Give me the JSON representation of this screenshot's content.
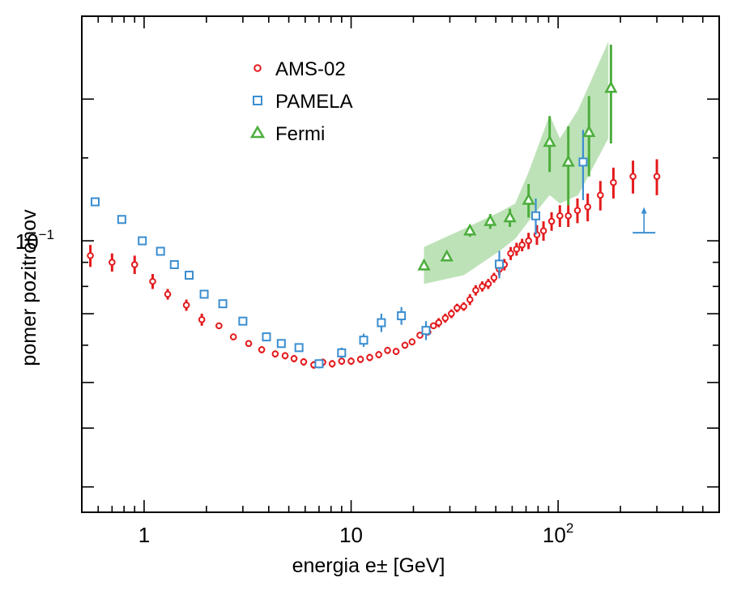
{
  "chart_data": {
    "type": "scatter",
    "xlabel": "energia e± [GeV]",
    "ylabel": "pomer pozitrónov",
    "x_scale": "log",
    "y_scale": "log",
    "xlim": [
      0.5,
      600
    ],
    "ylim": [
      0.0265,
      0.3
    ],
    "x_ticks": [
      {
        "value": 1,
        "label": "1"
      },
      {
        "value": 10,
        "label": "10"
      },
      {
        "value": 100,
        "label": "10",
        "sup": "2"
      }
    ],
    "y_ticks": [
      {
        "value": 0.1,
        "label": "10",
        "sup": "−1"
      }
    ],
    "grid": false,
    "legend_position": "top-left",
    "colors": {
      "ams": "#e31a1c",
      "pamela": "#3b8ed0",
      "fermi": "#4cae3c",
      "fermi_band": "#a8d8a0"
    },
    "series": [
      {
        "name": "AMS-02",
        "marker": "circle",
        "points": [
          [
            0.55,
            0.093,
            0.005
          ],
          [
            0.7,
            0.09,
            0.004
          ],
          [
            0.9,
            0.089,
            0.004
          ],
          [
            1.1,
            0.082,
            0.003
          ],
          [
            1.3,
            0.077,
            0.002
          ],
          [
            1.6,
            0.073,
            0.002
          ],
          [
            1.9,
            0.068,
            0.002
          ],
          [
            2.3,
            0.066,
            0.001
          ],
          [
            2.7,
            0.0625,
            0.001
          ],
          [
            3.2,
            0.0605,
            0.001
          ],
          [
            3.7,
            0.0587,
            0.001
          ],
          [
            4.3,
            0.0575,
            0.001
          ],
          [
            4.8,
            0.057,
            0.001
          ],
          [
            5.3,
            0.0562,
            0.001
          ],
          [
            5.9,
            0.0553,
            0.001
          ],
          [
            6.6,
            0.0545,
            0.001
          ],
          [
            7.3,
            0.0552,
            0.001
          ],
          [
            8.1,
            0.0548,
            0.001
          ],
          [
            9.0,
            0.0555,
            0.001
          ],
          [
            10.0,
            0.0555,
            0.001
          ],
          [
            11.1,
            0.056,
            0.001
          ],
          [
            12.3,
            0.0565,
            0.001
          ],
          [
            13.6,
            0.0573,
            0.001
          ],
          [
            15.0,
            0.0585,
            0.001
          ],
          [
            16.5,
            0.0582,
            0.001
          ],
          [
            18.2,
            0.06,
            0.001
          ],
          [
            19.7,
            0.061,
            0.001
          ],
          [
            21.5,
            0.063,
            0.001
          ],
          [
            23.5,
            0.064,
            0.001
          ],
          [
            25.0,
            0.066,
            0.001
          ],
          [
            26.5,
            0.067,
            0.0015
          ],
          [
            28.5,
            0.0685,
            0.0015
          ],
          [
            30.5,
            0.07,
            0.0015
          ],
          [
            32.5,
            0.072,
            0.0015
          ],
          [
            35.0,
            0.0725,
            0.0015
          ],
          [
            37.5,
            0.075,
            0.002
          ],
          [
            40.0,
            0.0785,
            0.002
          ],
          [
            43.0,
            0.08,
            0.002
          ],
          [
            46.0,
            0.081,
            0.002
          ],
          [
            49.0,
            0.0835,
            0.002
          ],
          [
            52.0,
            0.087,
            0.0025
          ],
          [
            55.0,
            0.089,
            0.0025
          ],
          [
            59.0,
            0.094,
            0.003
          ],
          [
            63.0,
            0.096,
            0.003
          ],
          [
            67.0,
            0.098,
            0.003
          ],
          [
            72.0,
            0.1,
            0.004
          ],
          [
            79.0,
            0.103,
            0.005
          ],
          [
            85.0,
            0.105,
            0.005
          ],
          [
            93.0,
            0.11,
            0.005
          ],
          [
            102.0,
            0.113,
            0.006
          ],
          [
            112.0,
            0.113,
            0.006
          ],
          [
            124.0,
            0.116,
            0.007
          ],
          [
            139.0,
            0.118,
            0.008
          ],
          [
            160.0,
            0.125,
            0.009
          ],
          [
            185.0,
            0.133,
            0.01
          ],
          [
            230.0,
            0.137,
            0.011
          ],
          [
            300.0,
            0.137,
            0.012
          ]
        ]
      },
      {
        "name": "PAMELA",
        "marker": "square",
        "points": [
          [
            0.58,
            0.121,
            0.001
          ],
          [
            0.78,
            0.111,
            0.001
          ],
          [
            0.98,
            0.1,
            0.001
          ],
          [
            1.2,
            0.095,
            0.001
          ],
          [
            1.4,
            0.089,
            0.001
          ],
          [
            1.65,
            0.0845,
            0.001
          ],
          [
            1.95,
            0.077,
            0.001
          ],
          [
            2.4,
            0.0735,
            0.001
          ],
          [
            3.0,
            0.0675,
            0.001
          ],
          [
            3.9,
            0.0625,
            0.001
          ],
          [
            4.6,
            0.0605,
            0.001
          ],
          [
            5.6,
            0.0593,
            0.001
          ],
          [
            7.0,
            0.0548,
            0.0012
          ],
          [
            9.0,
            0.0578,
            0.0015
          ],
          [
            11.5,
            0.0615,
            0.002
          ],
          [
            14.0,
            0.067,
            0.003
          ],
          [
            17.5,
            0.0693,
            0.003
          ],
          [
            23.0,
            0.0645,
            0.003
          ],
          [
            52.0,
            0.0892,
            0.006
          ],
          [
            78.0,
            0.113,
            0.01
          ],
          [
            132.0,
            0.147,
            0.025
          ]
        ]
      },
      {
        "name": "Fermi",
        "marker": "triangle",
        "points": [
          [
            22.5,
            0.0885,
            0.002
          ],
          [
            29.0,
            0.0925,
            0.002
          ],
          [
            37.5,
            0.105,
            0.003
          ],
          [
            47.0,
            0.11,
            0.004
          ],
          [
            58.5,
            0.112,
            0.005
          ],
          [
            72.0,
            0.122,
            0.01
          ],
          [
            91.0,
            0.162,
            0.022
          ],
          [
            112.0,
            0.147,
            0.028
          ],
          [
            141.0,
            0.17,
            0.033
          ],
          [
            180.0,
            0.211,
            0.05
          ]
        ],
        "band_upper": [
          [
            22.5,
            0.097
          ],
          [
            35.0,
            0.106
          ],
          [
            52.0,
            0.115
          ],
          [
            62.0,
            0.12
          ],
          [
            72.0,
            0.14
          ],
          [
            91.0,
            0.185
          ],
          [
            102.0,
            0.165
          ],
          [
            125.0,
            0.19
          ],
          [
            175.0,
            0.265
          ]
        ],
        "band_lower": [
          [
            175.0,
            0.165
          ],
          [
            125.0,
            0.125
          ],
          [
            102.0,
            0.12
          ],
          [
            91.0,
            0.125
          ],
          [
            72.0,
            0.11
          ],
          [
            62.0,
            0.101
          ],
          [
            52.0,
            0.095
          ],
          [
            35.0,
            0.0845
          ],
          [
            22.5,
            0.081
          ]
        ]
      }
    ],
    "annotations": [
      {
        "type": "lower-limit-arrow",
        "x": 260,
        "y": 0.104,
        "y_to": 0.117
      }
    ]
  }
}
